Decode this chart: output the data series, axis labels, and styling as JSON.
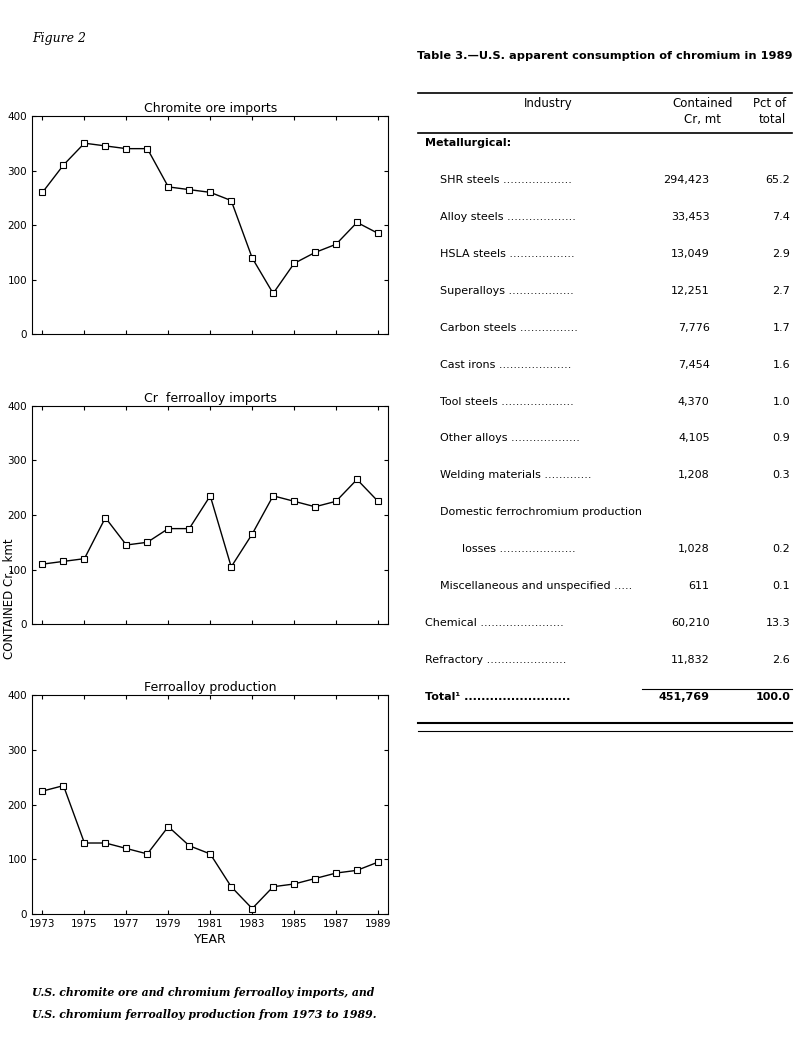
{
  "figure_label": "Figure 2",
  "chart1_title": "Chromite ore imports",
  "chart2_title": "Cr  ferroalloy imports",
  "chart3_title": "Ferroalloy production",
  "ylabel": "CONTAINED Cr,  kmt",
  "xlabel": "YEAR",
  "caption_line1": "U.S. chromite ore and chromium ferroalloy imports, and",
  "caption_line2": "U.S. chromium ferroalloy production from 1973 to 1989.",
  "chart1_years": [
    1973,
    1974,
    1975,
    1976,
    1977,
    1978,
    1979,
    1980,
    1981,
    1982,
    1983,
    1984,
    1985,
    1986,
    1987,
    1988,
    1989
  ],
  "chart1_vals": [
    260,
    310,
    350,
    345,
    340,
    340,
    270,
    265,
    260,
    245,
    140,
    75,
    130,
    150,
    165,
    205,
    185
  ],
  "chart2_years": [
    1973,
    1974,
    1975,
    1976,
    1977,
    1978,
    1979,
    1980,
    1981,
    1982,
    1983,
    1984,
    1985,
    1986,
    1987,
    1988,
    1989
  ],
  "chart2_vals": [
    110,
    115,
    120,
    195,
    145,
    150,
    175,
    175,
    235,
    105,
    165,
    235,
    225,
    215,
    225,
    265,
    225
  ],
  "chart3_years": [
    1973,
    1974,
    1975,
    1976,
    1977,
    1978,
    1979,
    1980,
    1981,
    1982,
    1983,
    1984,
    1985,
    1986,
    1987,
    1988,
    1989
  ],
  "chart3_vals": [
    225,
    235,
    130,
    130,
    120,
    110,
    160,
    125,
    110,
    50,
    10,
    50,
    55,
    65,
    75,
    80,
    95
  ],
  "table_title": "Table 3.—U.S. apparent consumption of chromium in 1989",
  "table_rows": [
    [
      "Metallurgical:",
      "",
      "",
      true,
      false
    ],
    [
      "SHR steels ...................",
      "294,423",
      "65.2",
      false,
      false
    ],
    [
      "Alloy steels ...................",
      "33,453",
      "7.4",
      false,
      false
    ],
    [
      "HSLA steels ..................",
      "13,049",
      "2.9",
      false,
      false
    ],
    [
      "Superalloys ..................",
      "12,251",
      "2.7",
      false,
      false
    ],
    [
      "Carbon steels ................",
      "7,776",
      "1.7",
      false,
      false
    ],
    [
      "Cast irons ....................",
      "7,454",
      "1.6",
      false,
      false
    ],
    [
      "Tool steels ....................",
      "4,370",
      "1.0",
      false,
      false
    ],
    [
      "Other alloys ...................",
      "4,105",
      "0.9",
      false,
      false
    ],
    [
      "Welding materials .............",
      "1,208",
      "0.3",
      false,
      false
    ],
    [
      "Domestic ferrochromium production",
      "",
      "",
      false,
      false
    ],
    [
      "  losses .....................",
      "1,028",
      "0.2",
      false,
      true
    ],
    [
      "Miscellaneous and unspecified .....",
      "611",
      "0.1",
      false,
      false
    ],
    [
      "Chemical .......................",
      "60,210",
      "13.3",
      false,
      false
    ],
    [
      "Refractory ......................",
      "11,832",
      "2.6",
      false,
      false
    ],
    [
      "Total¹ .........................",
      "451,769",
      "100.0",
      true,
      false
    ]
  ],
  "background_color": "#ffffff",
  "line_color": "#000000",
  "marker_color": "#ffffff",
  "xticks": [
    1973,
    1975,
    1977,
    1979,
    1981,
    1983,
    1985,
    1987,
    1989
  ],
  "xticklabels": [
    "1973",
    "1975",
    "1977",
    "1979",
    "1981",
    "1983",
    "1985",
    "1987",
    "1989"
  ],
  "yticks": [
    0,
    100,
    200,
    300,
    400
  ],
  "xlim": [
    1972.5,
    1989.5
  ],
  "ylim": [
    0,
    400
  ]
}
